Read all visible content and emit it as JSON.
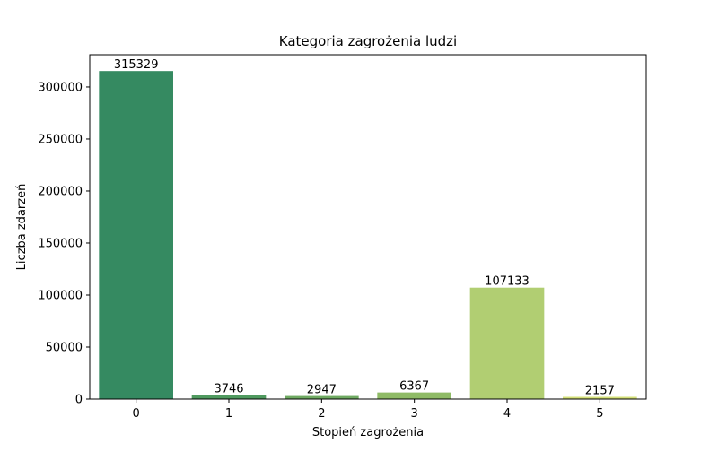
{
  "chart_data": {
    "type": "bar",
    "title": "Kategoria zagrożenia ludzi",
    "xlabel": "Stopień zagrożenia",
    "ylabel": "Liczba zdarzeń",
    "categories": [
      "0",
      "1",
      "2",
      "3",
      "4",
      "5"
    ],
    "values": [
      315329,
      3746,
      2947,
      6367,
      107133,
      2157
    ],
    "data_labels": [
      "315329",
      "3746",
      "2947",
      "6367",
      "107133",
      "2157"
    ],
    "ylim": [
      0,
      331000
    ],
    "yticks": [
      0,
      50000,
      100000,
      150000,
      200000,
      250000,
      300000
    ],
    "ytick_labels": [
      "0",
      "50000",
      "100000",
      "150000",
      "200000",
      "250000",
      "300000"
    ],
    "bar_colors": [
      "#358a61",
      "#4f9a5f",
      "#6faa62",
      "#8fbb66",
      "#b1ce72",
      "#d4e079"
    ],
    "grid": false,
    "legend": "none"
  }
}
